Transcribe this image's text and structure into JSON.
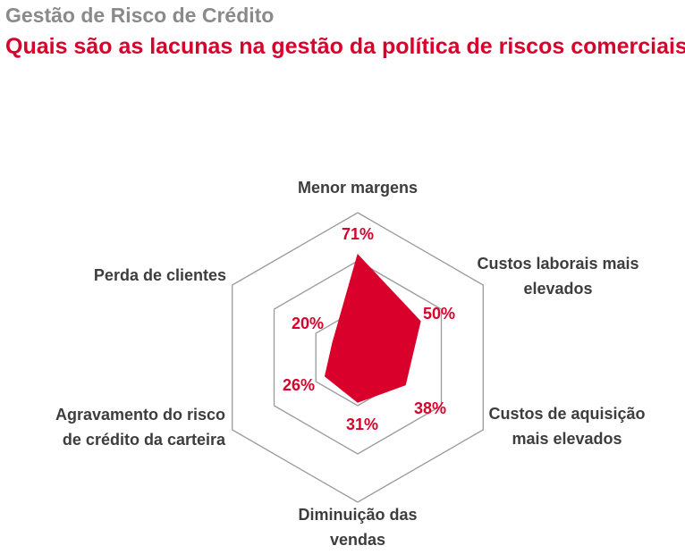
{
  "header": {
    "kicker": "Gestão de Risco de Crédito",
    "title": "Quais são as lacunas na gestão da política de riscos comerciais?"
  },
  "colors": {
    "accent": "#d9002b",
    "kicker": "#8a8a8a",
    "label": "#3d3d3d",
    "grid": "#9a9a9a"
  },
  "chart_data": {
    "type": "radar",
    "title": "Quais são as lacunas na gestão da política de riscos comerciais?",
    "categories": [
      [
        "Menor margens"
      ],
      [
        "Custos laborais mais",
        "elevados"
      ],
      [
        "Custos de aquisição",
        "mais elevados"
      ],
      [
        "Diminuição das",
        "vendas"
      ],
      [
        "Agravamento do risco",
        "de crédito da carteira"
      ],
      [
        "Perda de clientes"
      ]
    ],
    "values": [
      71,
      50,
      38,
      31,
      26,
      20
    ],
    "value_labels": [
      "71%",
      "50%",
      "38%",
      "31%",
      "26%",
      "20%"
    ],
    "unit": "%",
    "rmax": 100,
    "grid_levels": 3,
    "series_color": "#d9002b"
  }
}
